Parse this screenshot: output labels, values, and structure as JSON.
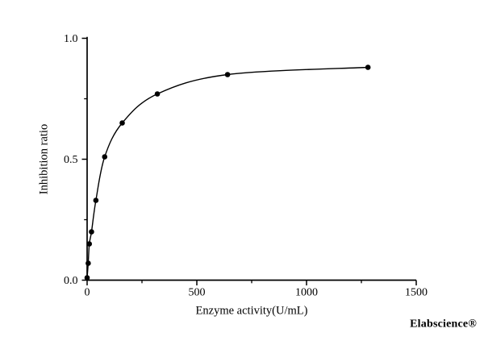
{
  "figure": {
    "background": "#ffffff",
    "watermark": {
      "text": "Elabscience®",
      "color": "#f4f4f5"
    }
  },
  "chart_data": {
    "type": "scatter",
    "title": "",
    "xlabel": "Enzyme activity(U/mL)",
    "ylabel": "Inhibition ratio",
    "xlim": [
      0,
      1500
    ],
    "ylim": [
      0,
      1.0
    ],
    "x": [
      0,
      5,
      10,
      20,
      40,
      80,
      160,
      320,
      640,
      1280
    ],
    "y": [
      0.01,
      0.07,
      0.15,
      0.2,
      0.33,
      0.51,
      0.65,
      0.77,
      0.85,
      0.88
    ],
    "curve": "smooth-through-points",
    "marker": {
      "shape": "circle",
      "color": "#000000",
      "radius": 3.3
    },
    "line_color": "#000000",
    "axis_color": "#000000",
    "xticks": {
      "values": [
        0,
        500,
        1000,
        1500
      ],
      "labels": [
        "0",
        "500",
        "1000",
        "1500"
      ]
    },
    "yticks": {
      "values": [
        0,
        0.5,
        1.0
      ],
      "labels": [
        "0.0",
        "0.5",
        "1.0"
      ]
    },
    "xminorticks": [
      250,
      750,
      1250
    ],
    "yminorticks": [
      0.25,
      0.75
    ],
    "grid": false,
    "legend": false
  }
}
